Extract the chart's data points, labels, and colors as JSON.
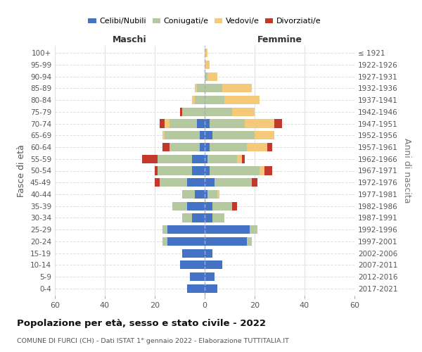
{
  "age_groups": [
    "0-4",
    "5-9",
    "10-14",
    "15-19",
    "20-24",
    "25-29",
    "30-34",
    "35-39",
    "40-44",
    "45-49",
    "50-54",
    "55-59",
    "60-64",
    "65-69",
    "70-74",
    "75-79",
    "80-84",
    "85-89",
    "90-94",
    "95-99",
    "100+"
  ],
  "birth_years": [
    "2017-2021",
    "2012-2016",
    "2007-2011",
    "2002-2006",
    "1997-2001",
    "1992-1996",
    "1987-1991",
    "1982-1986",
    "1977-1981",
    "1972-1976",
    "1967-1971",
    "1962-1966",
    "1957-1961",
    "1952-1956",
    "1947-1951",
    "1942-1946",
    "1937-1941",
    "1932-1936",
    "1927-1931",
    "1922-1926",
    "≤ 1921"
  ],
  "male_celibi": [
    7,
    6,
    10,
    9,
    15,
    15,
    5,
    7,
    4,
    7,
    5,
    5,
    2,
    2,
    3,
    0,
    0,
    0,
    0,
    0,
    0
  ],
  "male_coniugati": [
    0,
    0,
    0,
    0,
    2,
    2,
    4,
    6,
    5,
    11,
    14,
    14,
    12,
    14,
    11,
    9,
    4,
    3,
    0,
    0,
    0
  ],
  "male_vedovi": [
    0,
    0,
    0,
    0,
    0,
    0,
    0,
    0,
    0,
    0,
    0,
    0,
    0,
    1,
    2,
    0,
    1,
    1,
    0,
    0,
    0
  ],
  "male_divorziati": [
    0,
    0,
    0,
    0,
    0,
    0,
    0,
    0,
    0,
    2,
    1,
    6,
    3,
    0,
    2,
    1,
    0,
    0,
    0,
    0,
    0
  ],
  "female_celibi": [
    5,
    4,
    7,
    3,
    17,
    18,
    3,
    3,
    1,
    4,
    2,
    1,
    2,
    3,
    2,
    0,
    0,
    0,
    0,
    0,
    0
  ],
  "female_coniugati": [
    0,
    0,
    0,
    0,
    2,
    3,
    5,
    8,
    4,
    15,
    20,
    12,
    15,
    17,
    14,
    11,
    8,
    7,
    1,
    0,
    0
  ],
  "female_vedovi": [
    0,
    0,
    0,
    0,
    0,
    0,
    0,
    0,
    1,
    0,
    2,
    2,
    8,
    8,
    12,
    9,
    14,
    12,
    4,
    2,
    1
  ],
  "female_divorziati": [
    0,
    0,
    0,
    0,
    0,
    0,
    0,
    2,
    0,
    2,
    3,
    1,
    2,
    0,
    3,
    0,
    0,
    0,
    0,
    0,
    0
  ],
  "color_celibi": "#4472c4",
  "color_coniugati": "#b5c9a0",
  "color_vedovi": "#f5c97a",
  "color_divorziati": "#c0392b",
  "xlim": 60,
  "title": "Popolazione per età, sesso e stato civile - 2022",
  "subtitle": "COMUNE DI FURCI (CH) - Dati ISTAT 1° gennaio 2022 - Elaborazione TUTTITALIA.IT",
  "ylabel_left": "Fasce di età",
  "ylabel_right": "Anni di nascita",
  "xlabel_left": "Maschi",
  "xlabel_right": "Femmine"
}
